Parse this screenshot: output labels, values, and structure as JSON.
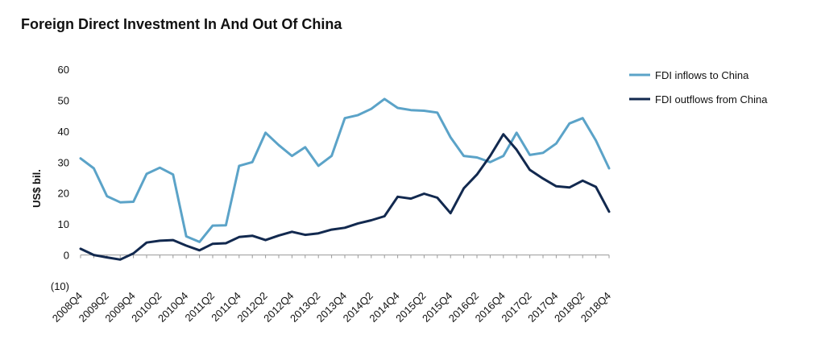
{
  "chart_data": {
    "type": "line",
    "title": "Foreign Direct Investment In And Out Of China",
    "ylabel": "US$ bil.",
    "xlabel": "",
    "ylim": [
      -10,
      60
    ],
    "yticks": [
      60,
      50,
      40,
      30,
      20,
      10,
      0,
      -10
    ],
    "ytick_labels": [
      "60",
      "50",
      "40",
      "30",
      "20",
      "10",
      "0",
      "(10)"
    ],
    "grid": false,
    "legend_position": "right",
    "x": [
      "2008Q4",
      "2009Q1",
      "2009Q2",
      "2009Q3",
      "2009Q4",
      "2010Q1",
      "2010Q2",
      "2010Q3",
      "2010Q4",
      "2011Q1",
      "2011Q2",
      "2011Q3",
      "2011Q4",
      "2012Q1",
      "2012Q2",
      "2012Q3",
      "2012Q4",
      "2013Q1",
      "2013Q2",
      "2013Q3",
      "2013Q4",
      "2014Q1",
      "2014Q2",
      "2014Q3",
      "2014Q4",
      "2015Q1",
      "2015Q2",
      "2015Q3",
      "2015Q4",
      "2016Q1",
      "2016Q2",
      "2016Q3",
      "2016Q4",
      "2017Q1",
      "2017Q2",
      "2017Q3",
      "2017Q4",
      "2018Q1",
      "2018Q2",
      "2018Q3",
      "2018Q4"
    ],
    "x_tick_labels": [
      "2008Q4",
      "2009Q2",
      "2009Q4",
      "2010Q2",
      "2010Q4",
      "2011Q2",
      "2011Q4",
      "2012Q2",
      "2012Q4",
      "2013Q2",
      "2013Q4",
      "2014Q2",
      "2014Q4",
      "2015Q2",
      "2015Q4",
      "2016Q2",
      "2016Q4",
      "2017Q2",
      "2017Q4",
      "2018Q2",
      "2018Q4"
    ],
    "series": [
      {
        "name": "FDI inflows to China",
        "color": "#5ba3c8",
        "values": [
          31.2,
          28,
          19,
          17,
          17.2,
          26.2,
          28.2,
          26,
          6,
          4.2,
          9.5,
          9.6,
          28.8,
          30,
          39.5,
          35.5,
          32,
          34.8,
          28.8,
          32,
          44.2,
          45.2,
          47.2,
          50.4,
          47.5,
          46.8,
          46.6,
          46,
          38,
          32,
          31.5,
          30,
          32,
          39.5,
          32.3,
          33,
          36,
          42.5,
          44.2,
          37,
          28
        ]
      },
      {
        "name": "FDI outflows from China",
        "color": "#12294f",
        "values": [
          2,
          0,
          -0.8,
          -1.5,
          0.5,
          4,
          4.6,
          4.8,
          3,
          1.5,
          3.6,
          3.8,
          5.8,
          6.2,
          4.8,
          6.3,
          7.5,
          6.5,
          7,
          8.2,
          8.8,
          10.2,
          11.2,
          12.5,
          18.8,
          18.2,
          19.8,
          18.5,
          13.5,
          21.5,
          26,
          32,
          39,
          34,
          27.5,
          24.7,
          22.2,
          21.8,
          24,
          22,
          14
        ]
      }
    ]
  }
}
